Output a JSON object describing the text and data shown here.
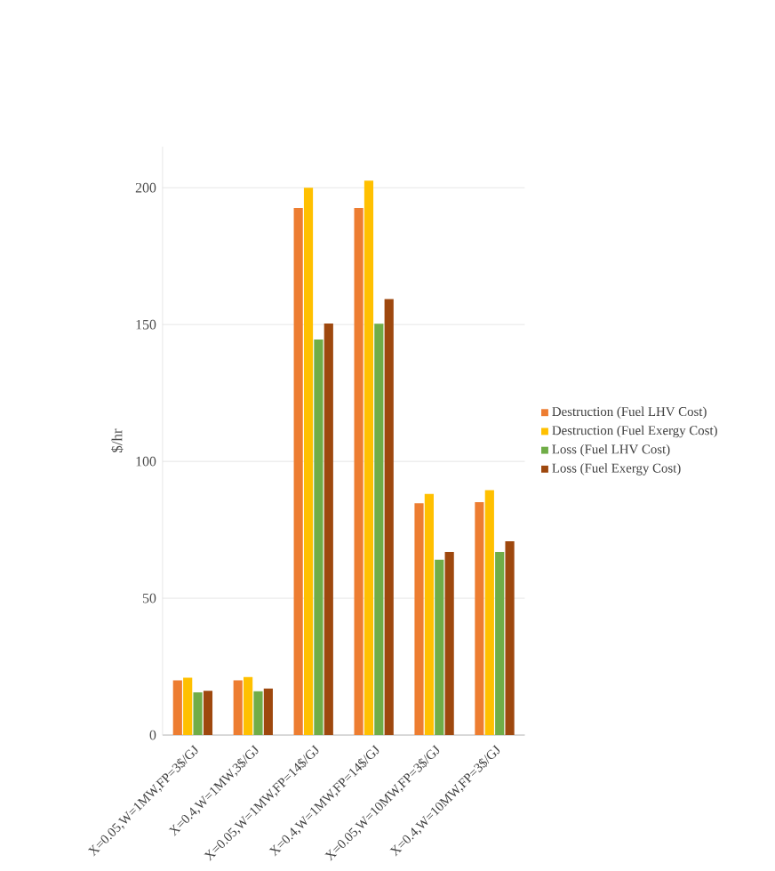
{
  "chart_data": {
    "type": "bar",
    "ylabel": "$/hr",
    "categories": [
      "X=0.05,W=1MW,FP=3$/GJ",
      "X=0.4,W=1MW,3$/GJ",
      "X=0.05,W=1MW,FP=14$/GJ",
      "X=0.4,W=1MW,FP=14$/GJ",
      "X=0.05,W=10MW,FP=3$/GJ",
      "X=0.4,W=10MW,FP=3$/GJ"
    ],
    "series": [
      {
        "name": "Destruction (Fuel LHV Cost)",
        "color": "#ed7d31",
        "values": [
          20,
          20,
          192.6,
          192.6,
          84.7,
          85.1
        ]
      },
      {
        "name": "Destruction (Fuel Exergy Cost)",
        "color": "#ffc000",
        "values": [
          21,
          21.2,
          200,
          202.6,
          88.1,
          89.5
        ]
      },
      {
        "name": "Loss (Fuel LHV Cost)",
        "color": "#70ad47",
        "values": [
          15.6,
          16,
          144.5,
          150.3,
          64.1,
          66.9
        ]
      },
      {
        "name": "Loss (Fuel Exergy Cost)",
        "color": "#9e480e",
        "values": [
          16.2,
          17,
          150.4,
          159.3,
          66.9,
          70.8
        ]
      }
    ],
    "ylim": [
      0,
      215
    ],
    "yticks": [
      0,
      50,
      100,
      150,
      200
    ],
    "grid": "y",
    "legend": "right"
  }
}
